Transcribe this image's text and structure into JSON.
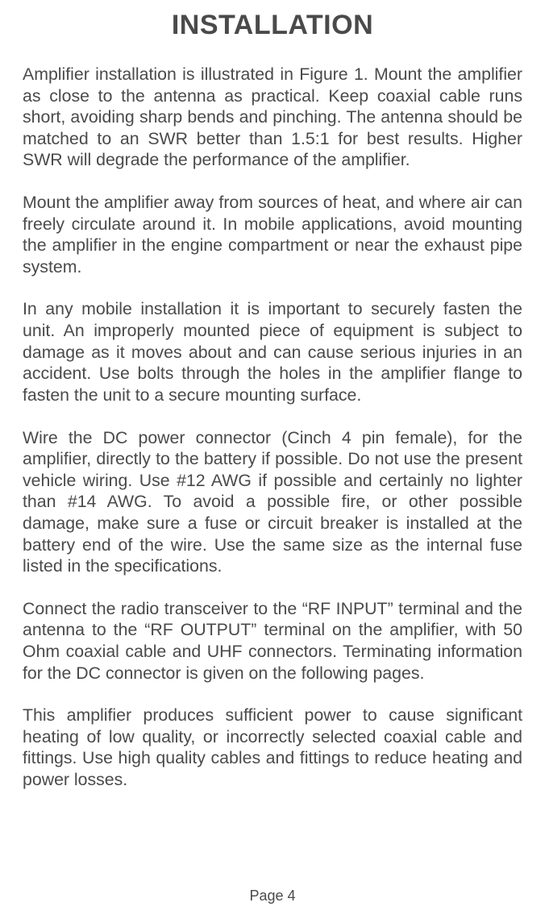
{
  "title": "INSTALLATION",
  "paragraphs": [
    "Amplifier installation is illustrated in Figure 1. Mount the amplifier as close to the antenna as practical. Keep coaxial cable runs short, avoiding sharp bends and pinching. The antenna should be matched to an SWR better than 1.5:1 for best results. Higher SWR will degrade the performance of the amplifier.",
    "Mount the amplifier away from sources of heat, and where air can freely circulate around it. In mobile applications, avoid mounting the amplifier in the engine compartment or near the exhaust pipe system.",
    "In any mobile installation it is important to securely fasten the unit. An improperly mounted piece of equipment is subject to damage as it moves about and can cause serious injuries in an accident. Use bolts through the holes in the amplifier flange to fasten the unit to a secure mounting surface.",
    "Wire the DC power connector (Cinch 4 pin female), for the amplifier, directly to the battery if possible. Do not use the present vehicle wiring. Use #12 AWG if possible and certainly no lighter than #14 AWG. To avoid a possible fire, or other possible damage, make sure a fuse or circuit breaker is installed at the battery end of the wire. Use the same size as the internal fuse listed in the specifications.",
    "Connect the radio transceiver to the “RF INPUT” terminal and the antenna to the “RF OUTPUT” terminal on the amplifier, with 50 Ohm coaxial cable and UHF connectors. Terminating information for the DC connector is given on the following pages.",
    "This amplifier produces sufficient power to cause significant heating of low quality, or incorrectly selected coaxial cable and fittings. Use high quality cables and fittings to reduce heating and power losses."
  ],
  "footer": "Page 4",
  "colors": {
    "text": "#4a4a4a",
    "background": "#ffffff"
  },
  "typography": {
    "title_fontsize": 34,
    "body_fontsize": 21.3,
    "footer_fontsize": 18,
    "line_height": 1.25,
    "text_align": "justify"
  }
}
